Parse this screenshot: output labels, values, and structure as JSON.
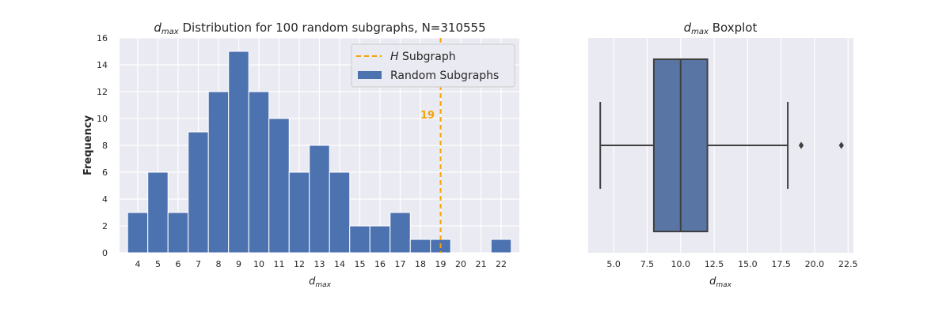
{
  "chart_data": [
    {
      "type": "bar",
      "title": {
        "main": "d",
        "sub": "max",
        "rest": " Distribution for 100 random subgraphs, N=310555"
      },
      "xlabel": {
        "main": "d",
        "sub": "max"
      },
      "ylabel": "Frequency",
      "categories": [
        "4",
        "5",
        "6",
        "7",
        "8",
        "9",
        "10",
        "11",
        "12",
        "13",
        "14",
        "15",
        "16",
        "17",
        "18",
        "19",
        "20",
        "21",
        "22"
      ],
      "series": [
        {
          "name": "Random Subgraphs",
          "values": [
            3,
            6,
            3,
            9,
            12,
            15,
            12,
            10,
            6,
            8,
            6,
            2,
            2,
            3,
            1,
            1,
            0,
            0,
            1
          ],
          "color": "#4c72b0"
        }
      ],
      "ylim": [
        0,
        16
      ],
      "yticks": [
        "0",
        "2",
        "4",
        "6",
        "8",
        "10",
        "12",
        "14",
        "16"
      ],
      "reference_line": {
        "x": 19,
        "label_prefix": "H",
        "label_rest": " Subgraph",
        "annotation": "19",
        "color": "#f5a20a"
      },
      "legend": {
        "placement": "top-right",
        "entries": [
          {
            "prefix": "H",
            "rest": " Subgraph"
          },
          {
            "prefix": "",
            "rest": "Random Subgraphs"
          }
        ]
      },
      "grid": true
    },
    {
      "type": "boxplot",
      "title": {
        "main": "d",
        "sub": "max",
        "rest": " Boxplot"
      },
      "xlabel": {
        "main": "d",
        "sub": "max"
      },
      "xlim": [
        3.1,
        22.9
      ],
      "xticks": [
        "5.0",
        "7.5",
        "10.0",
        "12.5",
        "15.0",
        "17.5",
        "20.0",
        "22.5"
      ],
      "box": {
        "whisker_low": 4,
        "q1": 8,
        "median": 10,
        "q3": 12,
        "whisker_high": 18,
        "outliers": [
          19,
          22
        ],
        "color": "#5975a4"
      },
      "grid": true
    }
  ],
  "colors": {
    "background": "#eaeaf2",
    "grid": "#ffffff",
    "bar": "#4c72b0",
    "box": "#5975a4",
    "line": "#3f3f3f",
    "reference": "#f5a20a"
  }
}
